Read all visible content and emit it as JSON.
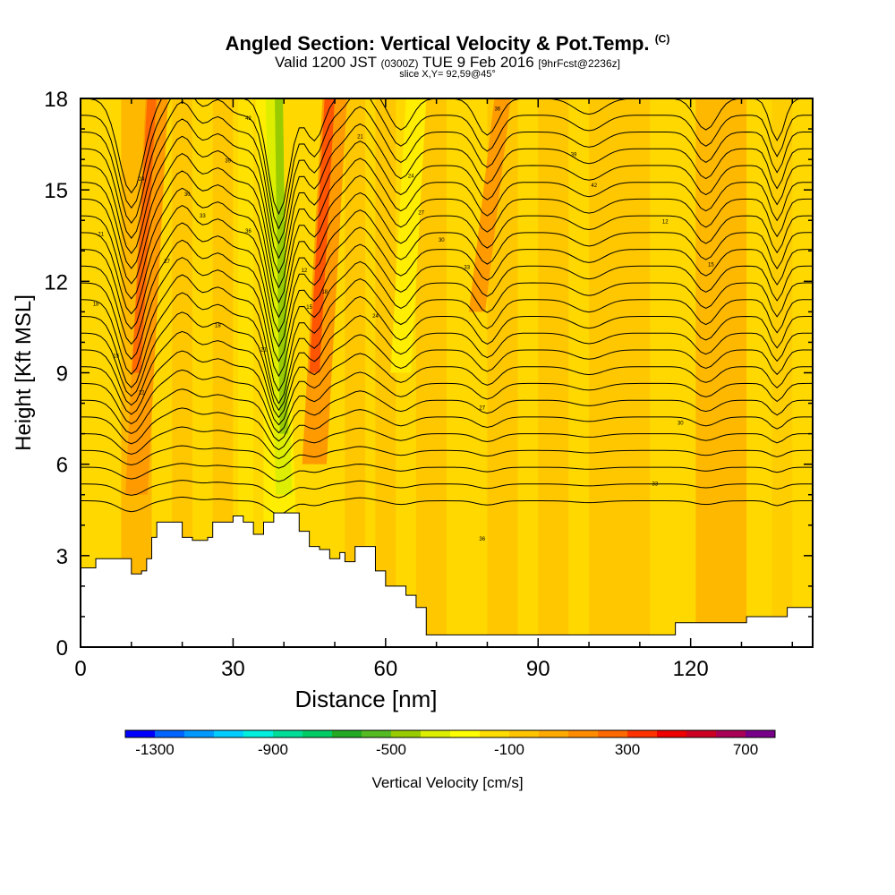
{
  "header": {
    "title": "Angled Section: Vertical Velocity & Pot.Temp.",
    "title_suffix": "(C)",
    "subtitle_valid": "Valid 1200 JST",
    "subtitle_z": "(0300Z)",
    "subtitle_date": "TUE 9 Feb 2016",
    "subtitle_fcst": "[9hrFcst@2236z]",
    "slice": "slice X,Y= 92,59@45°"
  },
  "chart_data": {
    "type": "heatmap",
    "title": "Angled Section: Vertical Velocity & Pot.Temp.",
    "xlabel": "Distance [nm]",
    "ylabel": "Height [Kft MSL]",
    "xlim": [
      0,
      144
    ],
    "ylim": [
      0,
      18
    ],
    "x_ticks": [
      0,
      30,
      60,
      90,
      120
    ],
    "y_ticks": [
      0,
      3,
      6,
      9,
      12,
      15,
      18
    ],
    "colorbar": {
      "label": "Vertical Velocity [cm/s]",
      "ticks": [
        -1300,
        -900,
        -500,
        -100,
        300,
        700
      ],
      "range": [
        -1400,
        800
      ],
      "colors": [
        "#0000ff",
        "#0066ff",
        "#0099ff",
        "#00ccff",
        "#00eedd",
        "#00dd99",
        "#00cc66",
        "#22aa22",
        "#55bb22",
        "#99cc00",
        "#ddee00",
        "#ffff00",
        "#ffdd00",
        "#ffc400",
        "#ffaa00",
        "#ff8c00",
        "#ff6a00",
        "#ff3300",
        "#ee0000",
        "#cc0022",
        "#aa0055",
        "#770088"
      ]
    },
    "terrain_kft": [
      [
        0,
        2.6
      ],
      [
        3,
        2.9
      ],
      [
        9,
        2.9
      ],
      [
        10,
        2.4
      ],
      [
        12,
        2.5
      ],
      [
        13,
        2.9
      ],
      [
        14,
        3.6
      ],
      [
        15,
        4.1
      ],
      [
        19,
        4.1
      ],
      [
        20,
        3.6
      ],
      [
        22,
        3.5
      ],
      [
        25,
        3.6
      ],
      [
        26,
        4.1
      ],
      [
        30,
        4.3
      ],
      [
        32,
        4.1
      ],
      [
        34,
        3.7
      ],
      [
        36,
        4.1
      ],
      [
        38,
        4.4
      ],
      [
        42,
        4.4
      ],
      [
        43,
        3.8
      ],
      [
        45,
        3.3
      ],
      [
        47,
        3.2
      ],
      [
        49,
        2.9
      ],
      [
        51,
        3.1
      ],
      [
        52,
        2.8
      ],
      [
        54,
        3.3
      ],
      [
        57,
        3.3
      ],
      [
        58,
        2.5
      ],
      [
        60,
        2.0
      ],
      [
        64,
        1.7
      ],
      [
        66,
        1.3
      ],
      [
        68,
        0.4
      ],
      [
        116,
        0.4
      ],
      [
        117,
        0.8
      ],
      [
        126,
        0.8
      ],
      [
        131,
        1.0
      ],
      [
        138,
        1.0
      ],
      [
        139,
        1.3
      ],
      [
        144,
        1.3
      ]
    ],
    "theta_contours_labels": [
      "12",
      "15",
      "18",
      "21",
      "24",
      "27",
      "30",
      "33",
      "36",
      "39",
      "42"
    ],
    "velocity_bands": [
      {
        "x": 13,
        "value": 350
      },
      {
        "x": 39,
        "value": -350
      },
      {
        "x": 47,
        "value": 400
      },
      {
        "x": 83,
        "value": 250
      }
    ]
  }
}
